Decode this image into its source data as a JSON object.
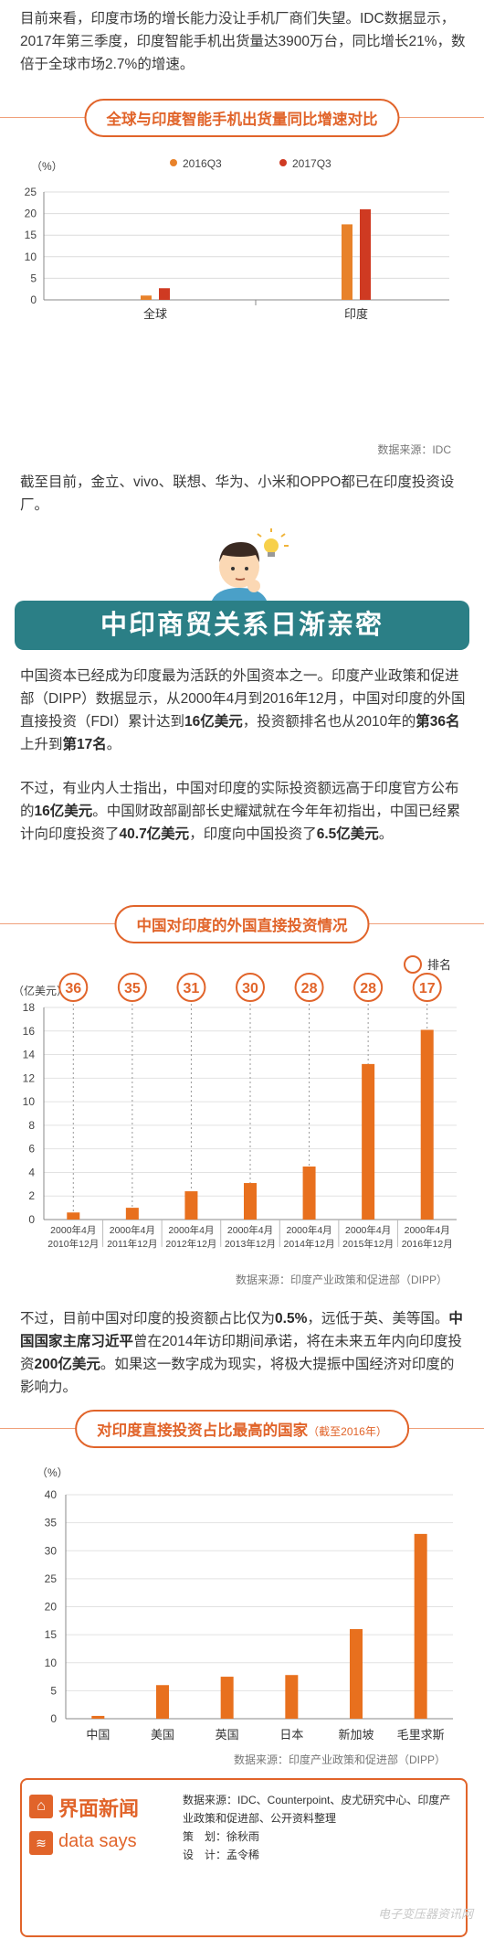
{
  "intro": {
    "p1": "目前来看，印度市场的增长能力没让手机厂商们失望。IDC数据显示，2017年第三季度，印度智能手机出货量达3900万台，同比增长21%，数倍于全球市场2.7%的增速。"
  },
  "chart1": {
    "title": "全球与印度智能手机出货量同比增速对比",
    "ylabel": "（%）",
    "source": "数据来源：IDC",
    "colors": {
      "s2016": "#e8822a",
      "s2017": "#cf3a22"
    }
  },
  "para2": "截至目前，金立、vivo、联想、华为、小米和OPPO都已在印度投资设厂。",
  "banner": {
    "title": "中印商贸关系日渐亲密"
  },
  "para3": {
    "a": "中国资本已经成为印度最为活跃的外国资本之一。印度产业政策和促进部（DIPP）数据显示，从2000年4月到2016年12月，中国对印度的外国直接投资（FDI）累计达到",
    "b": "16亿美元",
    "c": "，投资额排名也从2010年的",
    "d": "第36名",
    "e": "上升到",
    "f": "第17名",
    "g": "。"
  },
  "para4": {
    "a": "不过，有业内人士指出，中国对印度的实际投资额远高于印度官方公布的",
    "b": "16亿美元",
    "c": "。中国财政部副部长史耀斌就在今年年初指出，中国已经累计向印度投资了",
    "d": "40.7亿美元",
    "e": "，印度向中国投资了",
    "f": "6.5亿美元",
    "g": "。"
  },
  "chart2": {
    "title": "中国对印度的外国直接投资情况",
    "ylabel": "（亿美元）",
    "legend": "排名",
    "source": "数据来源：印度产业政策和促进部（DIPP）",
    "color": "#e8701e"
  },
  "para5": {
    "a": "不过，目前中国对印度的投资额占比仅为",
    "b": "0.5%",
    "c": "，远低于英、美等国。",
    "d": "中国国家主席习近平",
    "e": "曾在2014年访印期间承诺，将在未来五年内向印度投资",
    "f": "200亿美元",
    "g": "。如果这一数字成为现实，将极大提振中国经济对印度的影响力。"
  },
  "chart3": {
    "title": "对印度直接投资占比最高的国家",
    "title_note": "（截至2016年）",
    "ylabel": "（%）",
    "source": "数据来源：印度产业政策和促进部（DIPP）",
    "color": "#e8701e"
  },
  "footer": {
    "brand": "界面新闻",
    "sub": "data says",
    "source_label": "数据来源：",
    "source_text": "IDC、Counterpoint、皮尤研究中心、印度产业政策和促进部、公开资料整理",
    "planner_label": "策　划：",
    "planner": "徐秋雨",
    "designer_label": "设　计：",
    "designer": "孟令稀"
  },
  "watermark": "电子变压器资讯网",
  "chart_data": [
    {
      "type": "bar",
      "title": "全球与印度智能手机出货量同比增速对比",
      "ylabel": "（%）",
      "categories": [
        "全球",
        "印度"
      ],
      "series": [
        {
          "name": "2016Q3",
          "values": [
            1.0,
            17.5
          ]
        },
        {
          "name": "2017Q3",
          "values": [
            2.7,
            21.0
          ]
        }
      ],
      "ylim": [
        0,
        25
      ],
      "yticks": [
        0,
        5,
        10,
        15,
        20,
        25
      ],
      "legend": "top"
    },
    {
      "type": "bar",
      "title": "中国对印度的外国直接投资情况",
      "ylabel": "（亿美元）",
      "categories": [
        "2000年4月-2010年12月",
        "2000年4月-2011年12月",
        "2000年4月-2012年12月",
        "2000年4月-2013年12月",
        "2000年4月-2014年12月",
        "2000年4月-2015年12月",
        "2000年4月-2016年12月"
      ],
      "category_lines": [
        [
          "2000年4月",
          "2010年12月"
        ],
        [
          "2000年4月",
          "2011年12月"
        ],
        [
          "2000年4月",
          "2012年12月"
        ],
        [
          "2000年4月",
          "2013年12月"
        ],
        [
          "2000年4月",
          "2014年12月"
        ],
        [
          "2000年4月",
          "2015年12月"
        ],
        [
          "2000年4月",
          "2016年12月"
        ]
      ],
      "values": [
        0.6,
        1.0,
        2.4,
        3.1,
        4.5,
        13.2,
        16.1
      ],
      "ranks": [
        "36",
        "35",
        "31",
        "30",
        "28",
        "28",
        "17"
      ],
      "ylim": [
        0,
        18
      ],
      "yticks": [
        0,
        2,
        4,
        6,
        8,
        10,
        12,
        14,
        16,
        18
      ],
      "legend": "排名"
    },
    {
      "type": "bar",
      "title": "对印度直接投资占比最高的国家",
      "ylabel": "（%）",
      "categories": [
        "中国",
        "美国",
        "英国",
        "日本",
        "新加坡",
        "毛里求斯"
      ],
      "values": [
        0.5,
        6.0,
        7.5,
        7.8,
        16.0,
        33.0
      ],
      "ylim": [
        0,
        40
      ],
      "yticks": [
        0,
        5,
        10,
        15,
        20,
        25,
        30,
        35,
        40
      ]
    }
  ]
}
